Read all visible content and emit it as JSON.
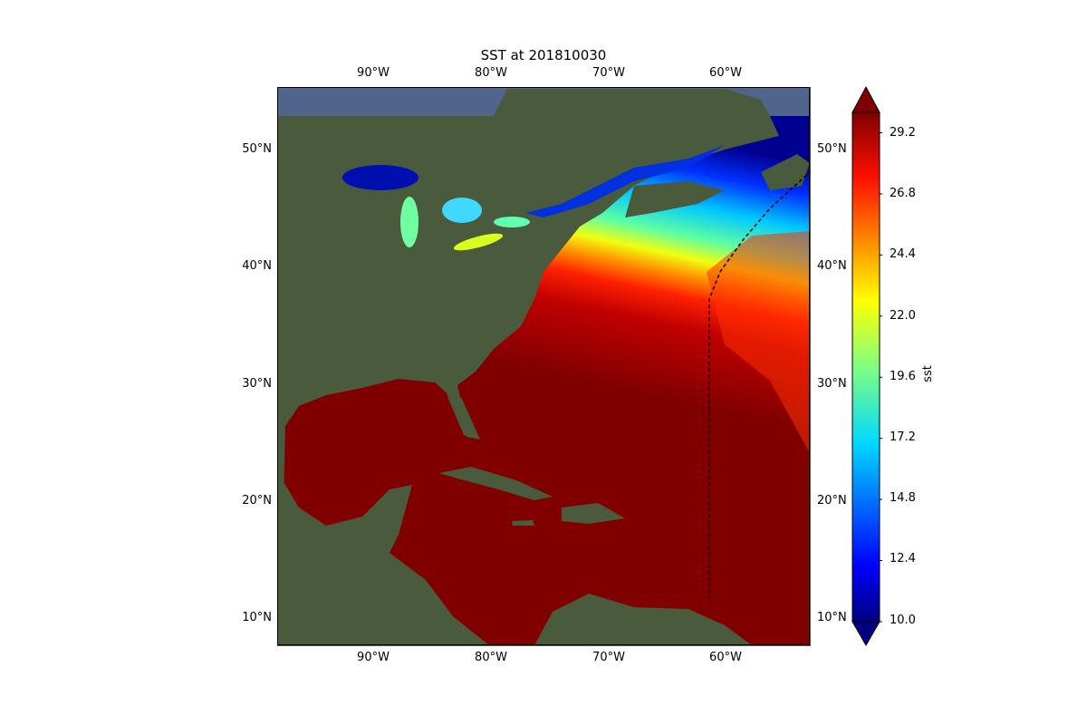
{
  "title": "SST at 201810030",
  "lon_ticks": [
    "90°W",
    "80°W",
    "70°W",
    "60°W"
  ],
  "lat_ticks": [
    "50°N",
    "40°N",
    "30°N",
    "20°N",
    "10°N"
  ],
  "colorbar": {
    "label": "sst",
    "min": 10.0,
    "max": 30.0,
    "extend": "both",
    "colormap": "jet",
    "ticks": [
      "29.2",
      "26.8",
      "24.4",
      "22.0",
      "19.6",
      "17.2",
      "14.8",
      "12.4",
      "10.0"
    ]
  },
  "map": {
    "extent_lon": [
      -98,
      -53
    ],
    "extent_lat": [
      8,
      55
    ],
    "land_color": "#4a5a3c",
    "warm_ocean_color": "#800000"
  }
}
